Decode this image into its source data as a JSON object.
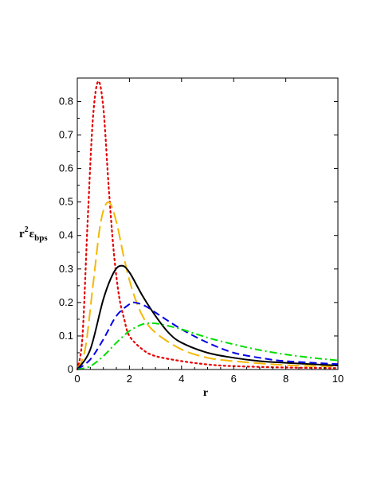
{
  "chart_data": {
    "type": "line",
    "title": "",
    "xlabel": "r",
    "ylabel": {
      "base": "r",
      "sup": "2",
      "symbol": "ε",
      "sub": "bps"
    },
    "xlim": [
      0,
      10
    ],
    "ylim": [
      0,
      0.87
    ],
    "xticks": [
      0,
      2,
      4,
      6,
      8,
      10
    ],
    "yticks": [
      0,
      0.1,
      0.2,
      0.3,
      0.4,
      0.5,
      0.6,
      0.7,
      0.8
    ],
    "ytick_labels": [
      "0",
      "0.1",
      "0.2",
      "0.3",
      "0.4",
      "0.5",
      "0.6",
      "0.7",
      "0.8"
    ],
    "grid": false,
    "legend": "none",
    "series": [
      {
        "color": "#e60000",
        "style": "dotted",
        "x": [
          0,
          0.2,
          0.4,
          0.6,
          0.8,
          1.0,
          1.2,
          1.4,
          1.6,
          1.8,
          2.0,
          2.5,
          3,
          4,
          5,
          6,
          8,
          10
        ],
        "y": [
          0,
          0.1,
          0.45,
          0.75,
          0.86,
          0.78,
          0.55,
          0.35,
          0.22,
          0.15,
          0.1,
          0.06,
          0.04,
          0.025,
          0.015,
          0.01,
          0.006,
          0.004
        ]
      },
      {
        "color": "#f5b800",
        "style": "long-dash",
        "x": [
          0,
          0.3,
          0.6,
          0.9,
          1.2,
          1.5,
          1.8,
          2.1,
          2.5,
          3,
          4,
          5,
          6,
          8,
          10
        ],
        "y": [
          0,
          0.06,
          0.25,
          0.44,
          0.5,
          0.44,
          0.33,
          0.24,
          0.16,
          0.11,
          0.06,
          0.035,
          0.025,
          0.013,
          0.009
        ]
      },
      {
        "color": "#000000",
        "style": "solid",
        "x": [
          0,
          0.5,
          1.0,
          1.4,
          1.7,
          2.0,
          2.5,
          3,
          3.5,
          4,
          5,
          6,
          7,
          8,
          10
        ],
        "y": [
          0,
          0.06,
          0.21,
          0.29,
          0.31,
          0.29,
          0.22,
          0.16,
          0.11,
          0.08,
          0.05,
          0.035,
          0.025,
          0.02,
          0.012
        ]
      },
      {
        "color": "#0000e6",
        "style": "dashed",
        "x": [
          0,
          0.5,
          1.0,
          1.5,
          2.0,
          2.2,
          2.6,
          3,
          4,
          5,
          6,
          7,
          8,
          10
        ],
        "y": [
          0,
          0.03,
          0.09,
          0.16,
          0.195,
          0.2,
          0.19,
          0.17,
          0.12,
          0.08,
          0.05,
          0.035,
          0.025,
          0.016
        ]
      },
      {
        "color": "#00dd00",
        "style": "dash-dot",
        "x": [
          0,
          0.5,
          1.0,
          1.5,
          2.0,
          2.5,
          2.8,
          3.2,
          4,
          5,
          6,
          7,
          8,
          9,
          10
        ],
        "y": [
          0,
          0.01,
          0.04,
          0.08,
          0.115,
          0.135,
          0.138,
          0.135,
          0.12,
          0.095,
          0.075,
          0.058,
          0.045,
          0.035,
          0.027
        ]
      }
    ]
  }
}
